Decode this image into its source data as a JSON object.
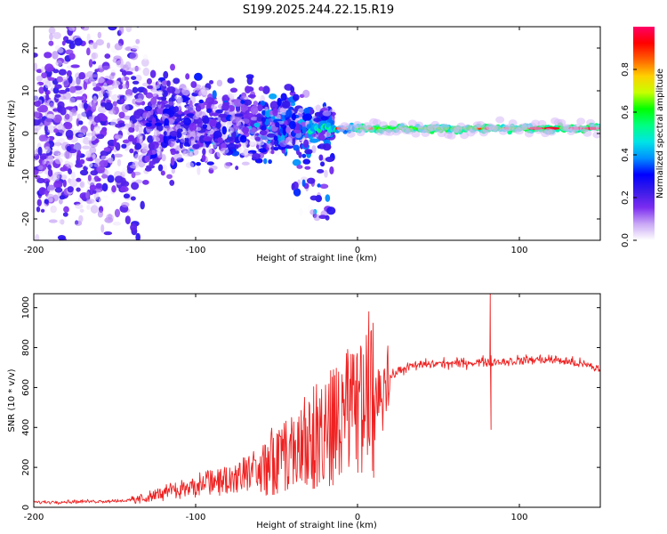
{
  "title": "S199.2025.244.22.15.R19",
  "chart_data": [
    {
      "type": "heatmap",
      "xlabel": "Height of straight line (km)",
      "ylabel": "Frequency (Hz)",
      "xlim": [
        -200,
        150
      ],
      "ylim": [
        -25,
        25
      ],
      "xticks": [
        -200,
        -100,
        0,
        100
      ],
      "yticks": [
        -20,
        -10,
        0,
        10,
        20
      ],
      "colorbar": {
        "label": "Normalized spectral amplitude",
        "range": [
          0,
          1
        ],
        "ticks": [
          "0.0",
          "0.2",
          "0.4",
          "0.6",
          "0.8"
        ],
        "colors": [
          "#ffffff",
          "#c9a7f5",
          "#7b2cf0",
          "#3a1be8",
          "#0000ff",
          "#0090ff",
          "#00e5e5",
          "#00ff80",
          "#00ff00",
          "#c8ff00",
          "#ffd000",
          "#ff6000",
          "#ff0000",
          "#ff0066"
        ]
      },
      "ridge": {
        "description": "narrow band near 1 Hz from about -30 km to 150 km",
        "freq_hz": 1.2
      }
    },
    {
      "type": "line",
      "xlabel": "Height of straight line (km)",
      "ylabel": "SNR (10 * v/v)",
      "xlim": [
        -200,
        150
      ],
      "ylim": [
        0,
        1070
      ],
      "xticks": [
        -200,
        -100,
        0,
        100
      ],
      "yticks": [
        0,
        200,
        400,
        600,
        800,
        1000
      ],
      "color": "#ee2222",
      "series": [
        {
          "name": "SNR",
          "x": [
            -200,
            -180,
            -160,
            -140,
            -130,
            -120,
            -110,
            -100,
            -90,
            -80,
            -70,
            -60,
            -50,
            -40,
            -30,
            -25,
            -20,
            -15,
            -10,
            -5,
            0,
            5,
            8,
            10,
            15,
            20,
            25,
            30,
            40,
            50,
            60,
            70,
            80,
            83,
            86,
            90,
            100,
            110,
            120,
            130,
            140,
            150
          ],
          "y": [
            25,
            28,
            30,
            35,
            50,
            70,
            90,
            110,
            125,
            140,
            170,
            200,
            240,
            280,
            330,
            360,
            380,
            400,
            430,
            460,
            500,
            540,
            500,
            560,
            620,
            650,
            680,
            700,
            715,
            720,
            720,
            725,
            730,
            730,
            730,
            730,
            735,
            740,
            740,
            730,
            715,
            690
          ],
          "spikes": [
            {
              "x": 7,
              "y": 980
            },
            {
              "x": 10,
              "y": 150
            },
            {
              "x": 82,
              "y": 1070
            },
            {
              "x": 82.5,
              "y": 390
            }
          ]
        }
      ]
    }
  ]
}
